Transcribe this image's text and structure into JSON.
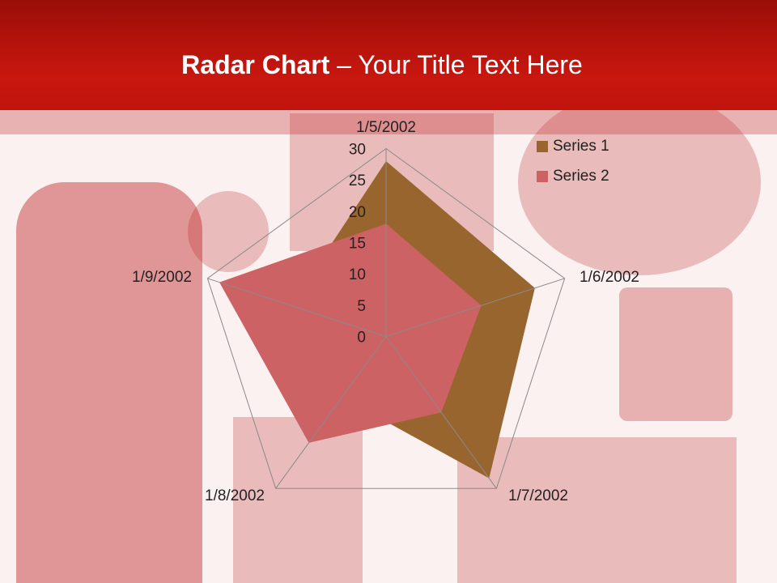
{
  "slide": {
    "title_bold": "Radar Chart",
    "title_rest": " – Your Title Text Here"
  },
  "chart_data": {
    "type": "radar",
    "categories": [
      "1/5/2002",
      "1/6/2002",
      "1/7/2002",
      "1/8/2002",
      "1/9/2002"
    ],
    "series": [
      {
        "name": "Series 1",
        "values": [
          28,
          25,
          28,
          12,
          16
        ],
        "color": "#98652f"
      },
      {
        "name": "Series 2",
        "values": [
          18,
          16,
          15,
          21,
          28
        ],
        "color": "#cd6264"
      }
    ],
    "rlim": [
      0,
      30
    ],
    "ticks": [
      "0",
      "5",
      "10",
      "15",
      "20",
      "25",
      "30"
    ],
    "legend": "top-right",
    "grid": true
  }
}
